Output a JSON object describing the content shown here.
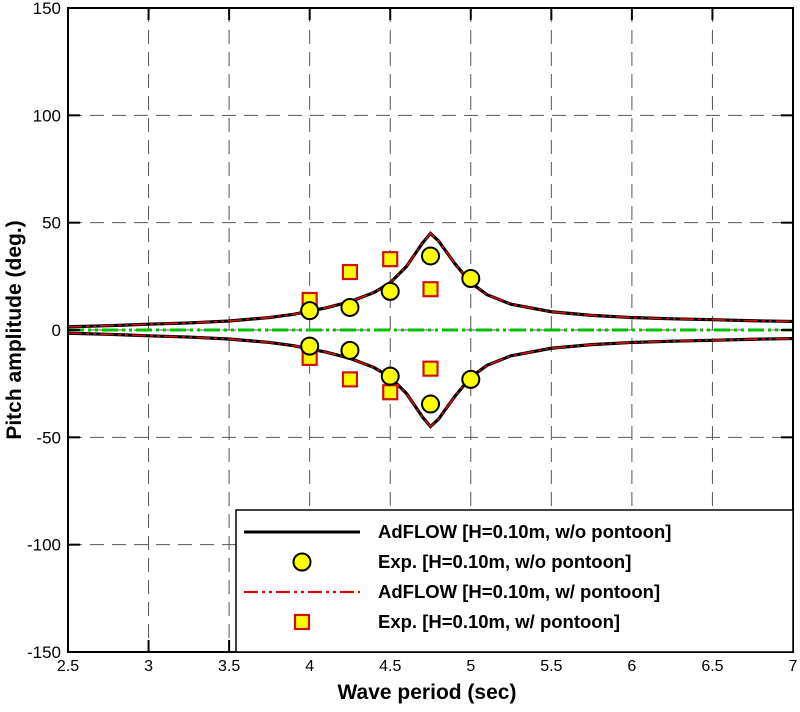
{
  "chart_data": {
    "type": "line",
    "xlabel": "Wave period (sec)",
    "ylabel": "Pitch amplitude (deg.)",
    "xlim": [
      2.5,
      7
    ],
    "ylim": [
      -150,
      150
    ],
    "xticks": [
      2.5,
      3,
      3.5,
      4,
      4.5,
      5,
      5.5,
      6,
      6.5,
      7
    ],
    "yticks": [
      -150,
      -100,
      -50,
      0,
      50,
      100,
      150
    ],
    "grid": true,
    "legend_position": "bottom-right",
    "series": [
      {
        "name": "AdFLOW [H=0.10m, w/o pontoon]",
        "kind": "line",
        "color": "#000000",
        "x": [
          2.5,
          2.75,
          3.0,
          3.25,
          3.5,
          3.75,
          3.9,
          4.0,
          4.1,
          4.25,
          4.4,
          4.5,
          4.6,
          4.7,
          4.75,
          4.8,
          4.9,
          5.0,
          5.1,
          5.25,
          5.5,
          5.75,
          6.0,
          6.25,
          6.5,
          6.75,
          7.0
        ],
        "y": [
          1.5,
          2.0,
          2.7,
          3.3,
          4.2,
          5.8,
          7.3,
          8.8,
          10.3,
          13.2,
          17.5,
          22.0,
          29.5,
          40.5,
          45.0,
          41.5,
          31.0,
          22.0,
          16.5,
          12.0,
          8.5,
          6.8,
          5.8,
          5.2,
          4.8,
          4.3,
          4.0
        ]
      },
      {
        "name": "Exp. [H=0.10m, w/o pontoon]",
        "kind": "marker-circle",
        "color": "#ffff00",
        "x": [
          4.0,
          4.25,
          4.5,
          4.75,
          5.0
        ],
        "y": [
          9,
          10.5,
          18,
          34.5,
          24
        ]
      },
      {
        "name": "AdFLOW [H=0.10m, w/ pontoon]",
        "kind": "dash-dot",
        "color": "#00c000",
        "x": [
          2.5,
          7.0
        ],
        "y": [
          0,
          0
        ]
      },
      {
        "name": "Exp. [H=0.10m, w/ pontoon]",
        "kind": "marker-square",
        "color": "#ffff00",
        "x": [
          4.0,
          4.0,
          4.25,
          4.25,
          4.5,
          4.5,
          4.75,
          4.75
        ],
        "y": [
          14,
          -13,
          27,
          -23,
          33,
          -29,
          19,
          -18
        ]
      }
    ],
    "mirror_series": [
      {
        "x": [
          2.5,
          2.75,
          3.0,
          3.25,
          3.5,
          3.75,
          3.9,
          4.0,
          4.1,
          4.25,
          4.4,
          4.5,
          4.6,
          4.7,
          4.75,
          4.8,
          4.9,
          5.0,
          5.1,
          5.25,
          5.5,
          5.75,
          6.0,
          6.25,
          6.5,
          6.75,
          7.0
        ],
        "y": [
          -1.5,
          -2.0,
          -2.7,
          -3.3,
          -4.2,
          -5.8,
          -7.3,
          -8.8,
          -10.3,
          -13.2,
          -17.5,
          -22.0,
          -29.5,
          -40.5,
          -45.0,
          -41.5,
          -31.0,
          -22.0,
          -16.5,
          -12.0,
          -8.5,
          -6.8,
          -5.8,
          -5.2,
          -4.8,
          -4.3,
          -4.0
        ]
      }
    ],
    "mirror_circles": {
      "x": [
        4.0,
        4.25,
        4.5,
        4.75,
        5.0
      ],
      "y": [
        -7.5,
        -9.5,
        -21.5,
        -34.5,
        -23
      ]
    }
  }
}
